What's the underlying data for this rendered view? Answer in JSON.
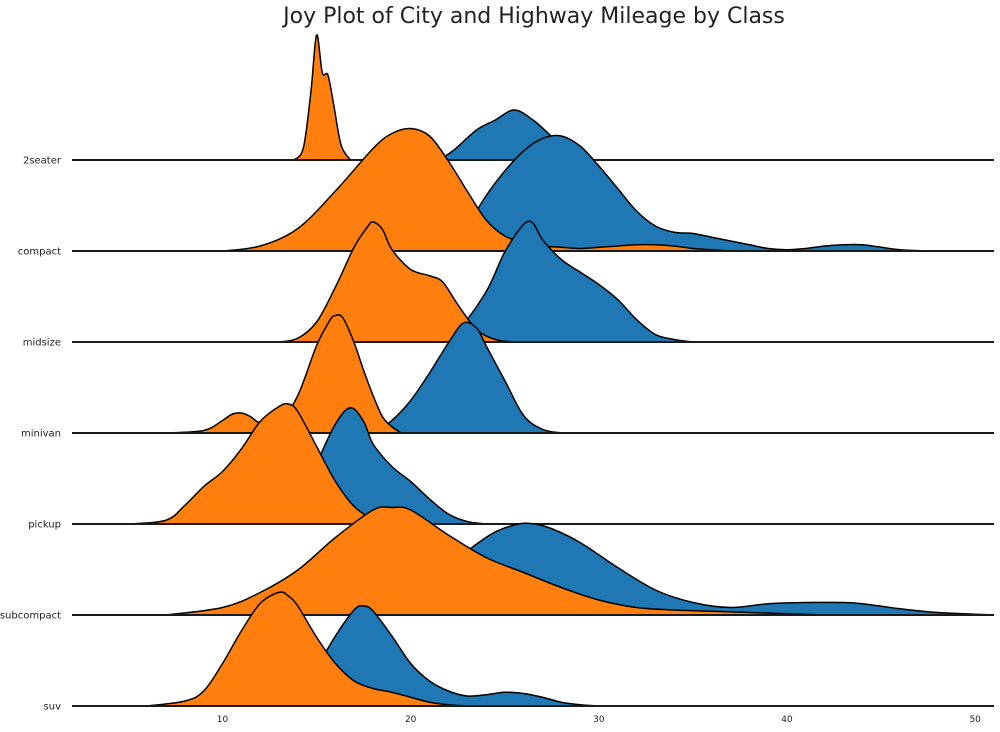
{
  "chart_data": {
    "type": "area",
    "title": "Joy Plot of City and Highway Mileage by Class",
    "xlabel": "",
    "ylabel": "",
    "xlim": [
      2,
      51
    ],
    "xticks": [
      10,
      20,
      30,
      40,
      50
    ],
    "grid": false,
    "legend": "none",
    "colors": {
      "hwy": "#1f77b4",
      "cty": "#ff7f0e",
      "outline": "#000000"
    },
    "categories": [
      "2seater",
      "compact",
      "midsize",
      "minivan",
      "pickup",
      "subcompact",
      "suv"
    ],
    "rows": [
      {
        "class": "2seater",
        "series": [
          {
            "key": "hwy",
            "points": [
              [
                21.5,
                0
              ],
              [
                22.3,
                0.08
              ],
              [
                23.5,
                0.24
              ],
              [
                24.5,
                0.32
              ],
              [
                25.5,
                0.4
              ],
              [
                26.5,
                0.32
              ],
              [
                27.4,
                0.2
              ],
              [
                28.2,
                0.08
              ],
              [
                29,
                0
              ]
            ]
          },
          {
            "key": "cty",
            "points": [
              [
                13.8,
                0
              ],
              [
                14.3,
                0.1
              ],
              [
                14.7,
                0.55
              ],
              [
                15.0,
                1.0
              ],
              [
                15.3,
                0.7
              ],
              [
                15.6,
                0.68
              ],
              [
                15.9,
                0.45
              ],
              [
                16.3,
                0.12
              ],
              [
                16.8,
                0
              ]
            ]
          }
        ]
      },
      {
        "class": "compact",
        "series": [
          {
            "key": "hwy",
            "points": [
              [
                22,
                0
              ],
              [
                23,
                0.2
              ],
              [
                24,
                0.44
              ],
              [
                25,
                0.64
              ],
              [
                26,
                0.8
              ],
              [
                27,
                0.9
              ],
              [
                28,
                0.92
              ],
              [
                29,
                0.84
              ],
              [
                30,
                0.68
              ],
              [
                31,
                0.5
              ],
              [
                32,
                0.32
              ],
              [
                33,
                0.2
              ],
              [
                34,
                0.15
              ],
              [
                35,
                0.14
              ],
              [
                36,
                0.11
              ],
              [
                37,
                0.08
              ],
              [
                38,
                0.05
              ],
              [
                39,
                0.02
              ],
              [
                40,
                0.01
              ],
              [
                41,
                0.02
              ],
              [
                42,
                0.04
              ],
              [
                43,
                0.05
              ],
              [
                44,
                0.05
              ],
              [
                45,
                0.03
              ],
              [
                46,
                0.01
              ],
              [
                47.5,
                0
              ]
            ]
          },
          {
            "key": "cty",
            "points": [
              [
                10,
                0
              ],
              [
                12,
                0.04
              ],
              [
                14,
                0.18
              ],
              [
                16,
                0.48
              ],
              [
                18,
                0.82
              ],
              [
                19,
                0.94
              ],
              [
                20,
                0.98
              ],
              [
                21,
                0.92
              ],
              [
                22,
                0.72
              ],
              [
                23,
                0.48
              ],
              [
                24,
                0.25
              ],
              [
                25,
                0.12
              ],
              [
                26,
                0.07
              ],
              [
                27,
                0.04
              ],
              [
                28,
                0.03
              ],
              [
                29,
                0.02
              ],
              [
                30,
                0.03
              ],
              [
                31,
                0.04
              ],
              [
                32,
                0.05
              ],
              [
                33,
                0.05
              ],
              [
                34,
                0.04
              ],
              [
                35,
                0.02
              ],
              [
                36,
                0.01
              ],
              [
                37,
                0
              ]
            ]
          }
        ]
      },
      {
        "class": "midsize",
        "series": [
          {
            "key": "hwy",
            "points": [
              [
                21,
                0
              ],
              [
                22.5,
                0.1
              ],
              [
                24,
                0.4
              ],
              [
                25,
                0.72
              ],
              [
                26,
                0.94
              ],
              [
                26.5,
                0.95
              ],
              [
                27,
                0.82
              ],
              [
                28,
                0.66
              ],
              [
                29,
                0.56
              ],
              [
                30,
                0.46
              ],
              [
                31,
                0.34
              ],
              [
                32,
                0.18
              ],
              [
                33,
                0.06
              ],
              [
                34,
                0.02
              ],
              [
                35,
                0
              ]
            ]
          },
          {
            "key": "cty",
            "points": [
              [
                13,
                0
              ],
              [
                14,
                0.03
              ],
              [
                15,
                0.16
              ],
              [
                16,
                0.44
              ],
              [
                17,
                0.76
              ],
              [
                17.7,
                0.92
              ],
              [
                18,
                0.96
              ],
              [
                18.5,
                0.9
              ],
              [
                19,
                0.74
              ],
              [
                20,
                0.58
              ],
              [
                21,
                0.53
              ],
              [
                21.7,
                0.48
              ],
              [
                22.5,
                0.3
              ],
              [
                23.5,
                0.1
              ],
              [
                24.5,
                0.02
              ],
              [
                25.5,
                0
              ]
            ]
          }
        ]
      },
      {
        "class": "minivan",
        "series": [
          {
            "key": "hwy",
            "points": [
              [
                18,
                0
              ],
              [
                19,
                0.1
              ],
              [
                20,
                0.26
              ],
              [
                21,
                0.48
              ],
              [
                22,
                0.72
              ],
              [
                22.8,
                0.88
              ],
              [
                23.5,
                0.84
              ],
              [
                24,
                0.7
              ],
              [
                25,
                0.42
              ],
              [
                26,
                0.14
              ],
              [
                27,
                0.03
              ],
              [
                28,
                0
              ]
            ]
          },
          {
            "key": "cty",
            "points": [
              [
                7,
                0
              ],
              [
                9,
                0.02
              ],
              [
                10,
                0.1
              ],
              [
                10.5,
                0.15
              ],
              [
                11,
                0.16
              ],
              [
                11.5,
                0.13
              ],
              [
                12,
                0.08
              ],
              [
                13,
                0.08
              ],
              [
                14,
                0.3
              ],
              [
                15,
                0.7
              ],
              [
                15.7,
                0.9
              ],
              [
                16,
                0.94
              ],
              [
                16.4,
                0.92
              ],
              [
                17,
                0.72
              ],
              [
                17.5,
                0.5
              ],
              [
                18,
                0.3
              ],
              [
                18.5,
                0.13
              ],
              [
                19,
                0.05
              ],
              [
                19.5,
                0
              ]
            ]
          }
        ]
      },
      {
        "class": "pickup",
        "series": [
          {
            "key": "hwy",
            "points": [
              [
                13,
                0
              ],
              [
                14,
                0.1
              ],
              [
                15,
                0.48
              ],
              [
                16,
                0.8
              ],
              [
                16.8,
                0.93
              ],
              [
                17.5,
                0.82
              ],
              [
                18,
                0.64
              ],
              [
                19,
                0.46
              ],
              [
                20,
                0.34
              ],
              [
                21,
                0.2
              ],
              [
                22,
                0.08
              ],
              [
                23,
                0.02
              ],
              [
                24,
                0
              ]
            ]
          },
          {
            "key": "cty",
            "points": [
              [
                5,
                0
              ],
              [
                7,
                0.03
              ],
              [
                8,
                0.15
              ],
              [
                9,
                0.3
              ],
              [
                10,
                0.42
              ],
              [
                11,
                0.6
              ],
              [
                12,
                0.82
              ],
              [
                13,
                0.94
              ],
              [
                13.5,
                0.96
              ],
              [
                14,
                0.9
              ],
              [
                15,
                0.62
              ],
              [
                16,
                0.34
              ],
              [
                17,
                0.14
              ],
              [
                18,
                0.04
              ],
              [
                19,
                0
              ]
            ]
          }
        ]
      },
      {
        "class": "subcompact",
        "series": [
          {
            "key": "hwy",
            "points": [
              [
                21,
                0
              ],
              [
                22,
                0.36
              ],
              [
                24,
                0.62
              ],
              [
                25.5,
                0.72
              ],
              [
                26.5,
                0.73
              ],
              [
                27.5,
                0.69
              ],
              [
                29,
                0.58
              ],
              [
                31,
                0.38
              ],
              [
                33,
                0.2
              ],
              [
                35,
                0.1
              ],
              [
                37,
                0.06
              ],
              [
                39,
                0.09
              ],
              [
                41,
                0.1
              ],
              [
                43,
                0.1
              ],
              [
                44,
                0.09
              ],
              [
                46,
                0.05
              ],
              [
                48,
                0.02
              ],
              [
                51,
                0
              ]
            ]
          },
          {
            "key": "cty",
            "points": [
              [
                7,
                0
              ],
              [
                10,
                0.06
              ],
              [
                12,
                0.18
              ],
              [
                14,
                0.36
              ],
              [
                16,
                0.62
              ],
              [
                18,
                0.84
              ],
              [
                19,
                0.86
              ],
              [
                20,
                0.84
              ],
              [
                22,
                0.64
              ],
              [
                24,
                0.46
              ],
              [
                26,
                0.34
              ],
              [
                28,
                0.22
              ],
              [
                30,
                0.12
              ],
              [
                32,
                0.06
              ],
              [
                34,
                0.04
              ],
              [
                36,
                0.03
              ],
              [
                38,
                0.02
              ],
              [
                40,
                0.01
              ],
              [
                42,
                0
              ]
            ]
          }
        ]
      },
      {
        "class": "suv",
        "series": [
          {
            "key": "hwy",
            "points": [
              [
                14,
                0
              ],
              [
                15,
                0.3
              ],
              [
                16,
                0.56
              ],
              [
                17,
                0.77
              ],
              [
                17.5,
                0.8
              ],
              [
                18,
                0.76
              ],
              [
                19,
                0.56
              ],
              [
                20,
                0.34
              ],
              [
                21,
                0.2
              ],
              [
                22,
                0.12
              ],
              [
                23,
                0.08
              ],
              [
                24,
                0.09
              ],
              [
                25,
                0.11
              ],
              [
                26,
                0.1
              ],
              [
                27,
                0.07
              ],
              [
                28,
                0.03
              ],
              [
                29,
                0.01
              ],
              [
                30,
                0
              ]
            ]
          },
          {
            "key": "cty",
            "points": [
              [
                6,
                0
              ],
              [
                8,
                0.04
              ],
              [
                9,
                0.12
              ],
              [
                10,
                0.34
              ],
              [
                11,
                0.6
              ],
              [
                12,
                0.82
              ],
              [
                13,
                0.91
              ],
              [
                13.5,
                0.88
              ],
              [
                14,
                0.8
              ],
              [
                15,
                0.55
              ],
              [
                16,
                0.34
              ],
              [
                17,
                0.2
              ],
              [
                18,
                0.14
              ],
              [
                19,
                0.11
              ],
              [
                20,
                0.07
              ],
              [
                21,
                0.03
              ],
              [
                22,
                0.01
              ],
              [
                23,
                0
              ]
            ]
          }
        ]
      }
    ]
  }
}
